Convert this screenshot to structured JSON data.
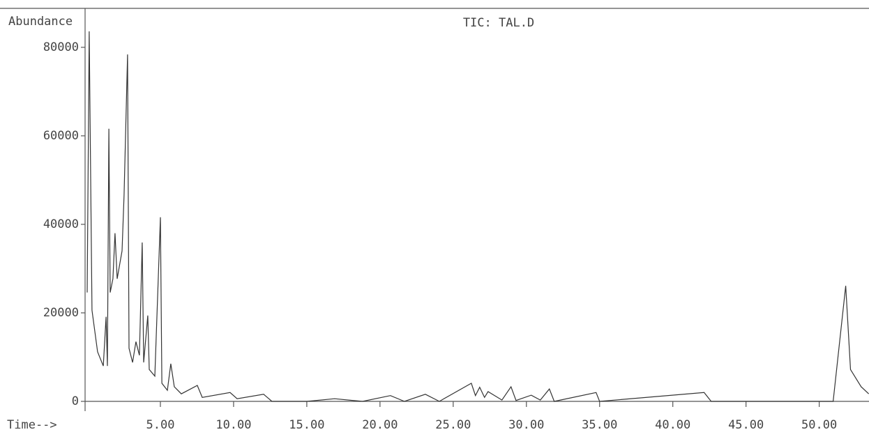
{
  "chart_data": {
    "type": "line",
    "title": "TIC: TAL.D",
    "y_label": "Abundance",
    "x_label": "Time-->",
    "color": "#333333",
    "x": [
      0.0,
      0.14,
      0.33,
      0.71,
      1.1,
      1.29,
      1.38,
      1.48,
      1.57,
      1.76,
      1.9,
      2.05,
      2.38,
      2.52,
      2.76,
      2.86,
      3.1,
      3.33,
      3.57,
      3.76,
      3.86,
      4.14,
      4.24,
      4.62,
      5.0,
      5.1,
      5.48,
      5.71,
      5.95,
      6.43,
      7.52,
      7.86,
      9.76,
      10.24,
      12.05,
      12.62,
      15.0,
      16.9,
      18.81,
      20.71,
      21.67,
      23.1,
      24.05,
      26.24,
      26.52,
      26.81,
      27.14,
      27.38,
      28.33,
      28.95,
      29.29,
      30.33,
      30.95,
      31.57,
      31.9,
      34.76,
      35.0,
      42.14,
      42.62,
      50.95,
      51.81,
      52.14,
      52.86,
      53.38
    ],
    "values": [
      24600,
      83600,
      20600,
      11200,
      8000,
      19100,
      8000,
      61600,
      24600,
      27700,
      38000,
      27700,
      34000,
      46600,
      78400,
      12000,
      8800,
      13500,
      10400,
      35900,
      8800,
      19400,
      7200,
      5700,
      41600,
      4100,
      2500,
      8500,
      3300,
      1700,
      3600,
      900,
      2000,
      600,
      1600,
      0,
      0,
      600,
      0,
      1300,
      0,
      1600,
      0,
      4100,
      1300,
      3200,
      900,
      2200,
      300,
      3300,
      200,
      1400,
      300,
      2800,
      0,
      2000,
      0,
      2000,
      0,
      0,
      26100,
      7200,
      3300,
      1700
    ],
    "xlim": [
      0,
      53.4
    ],
    "ylim": [
      0,
      88800
    ],
    "xticks": [
      {
        "value": 5,
        "label": "5.00"
      },
      {
        "value": 10,
        "label": "10.00"
      },
      {
        "value": 15,
        "label": "15.00"
      },
      {
        "value": 20,
        "label": "20.00"
      },
      {
        "value": 25,
        "label": "25.00"
      },
      {
        "value": 30,
        "label": "30.00"
      },
      {
        "value": 35,
        "label": "35.00"
      },
      {
        "value": 40,
        "label": "40.00"
      },
      {
        "value": 45,
        "label": "45.00"
      },
      {
        "value": 50,
        "label": "50.00"
      }
    ],
    "yticks": [
      0,
      20000,
      40000,
      60000,
      80000
    ]
  }
}
